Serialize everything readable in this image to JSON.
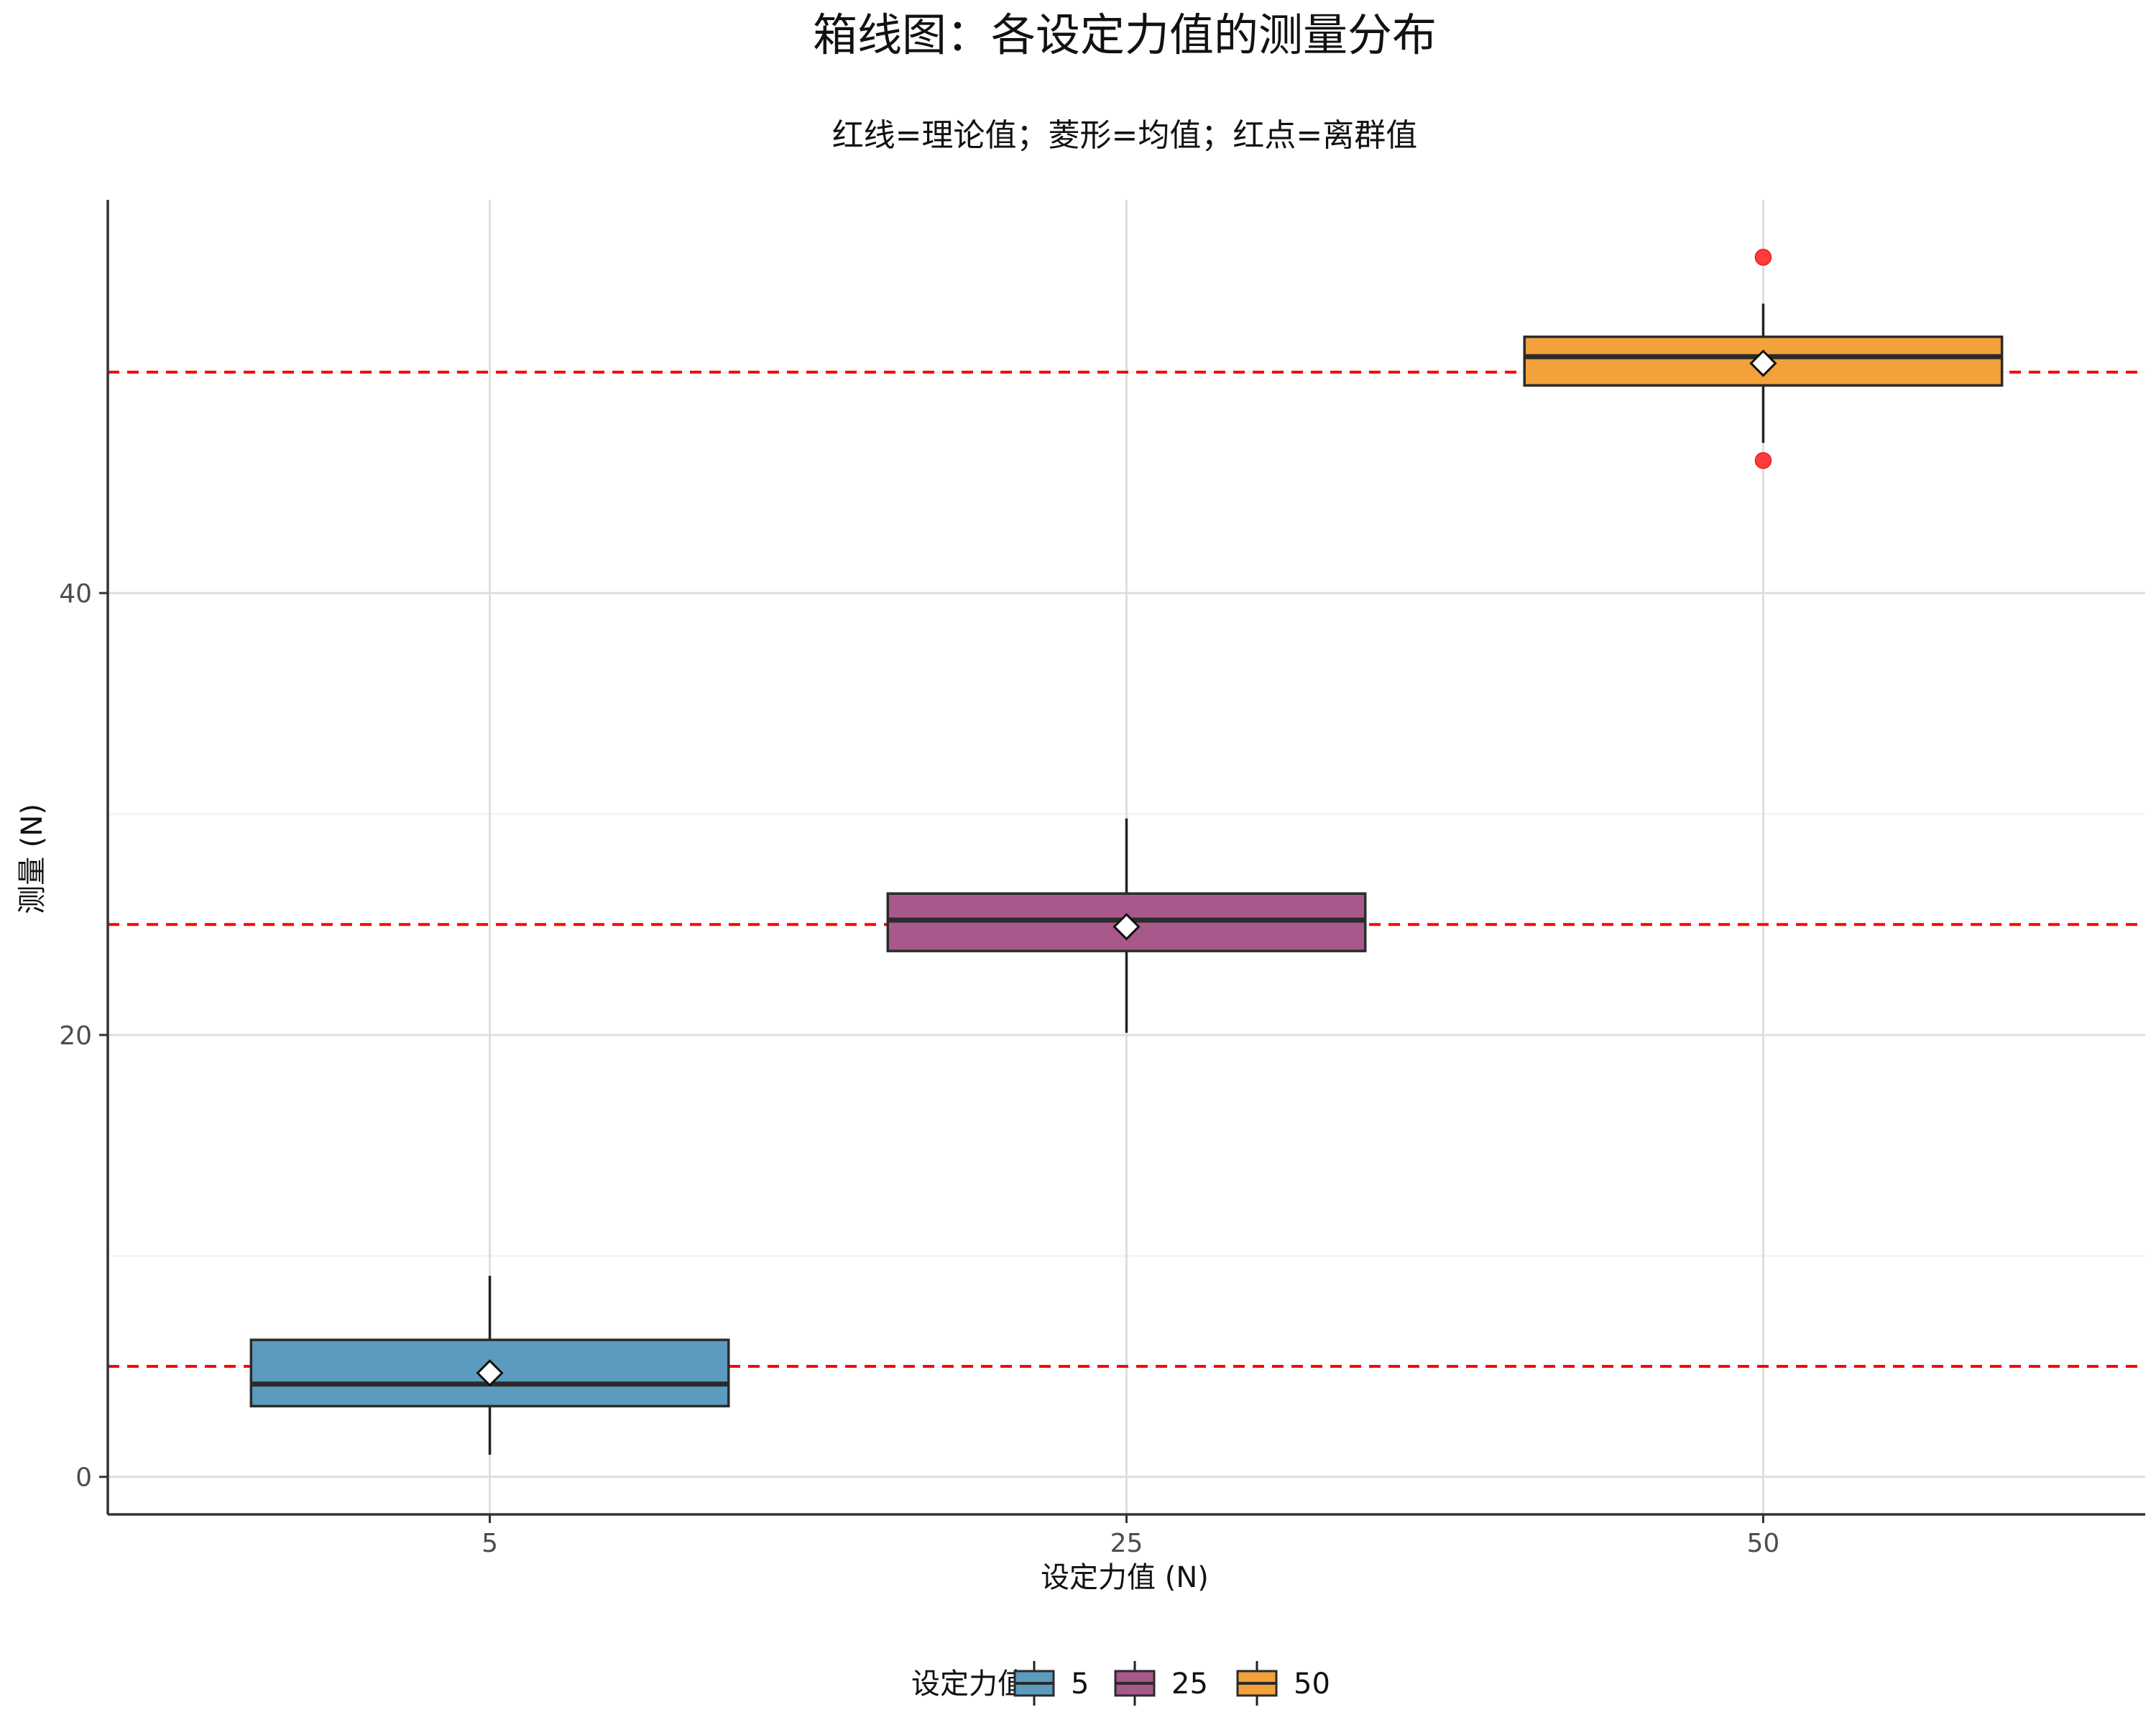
{
  "chart_data": {
    "type": "box",
    "title": "箱线图：各设定力值的测量分布",
    "subtitle": "红线=理论值；菱形=均值；红点=离群值",
    "xlabel": "设定力值 (N)",
    "ylabel": "测量 (N)",
    "categories": [
      "5",
      "25",
      "50"
    ],
    "ylim": [
      -1.7,
      57.8
    ],
    "y_ticks": [
      0,
      20,
      40
    ],
    "y_minor_ticks": [
      10,
      30,
      50
    ],
    "grid": true,
    "reference_lines": [
      5,
      25,
      50
    ],
    "boxes": [
      {
        "category": "5",
        "whisker_low": 1.0,
        "q1": 3.2,
        "median": 4.2,
        "q3": 6.2,
        "whisker_high": 9.1,
        "mean": 4.7,
        "outliers": []
      },
      {
        "category": "25",
        "whisker_low": 20.1,
        "q1": 23.8,
        "median": 25.2,
        "q3": 26.4,
        "whisker_high": 29.8,
        "mean": 24.9,
        "outliers": []
      },
      {
        "category": "50",
        "whisker_low": 46.8,
        "q1": 49.4,
        "median": 50.7,
        "q3": 51.6,
        "whisker_high": 53.1,
        "mean": 50.4,
        "outliers": [
          55.2,
          46.0
        ]
      }
    ],
    "colors": {
      "5": "#5b9bbd",
      "25": "#a8588b",
      "50": "#f3a13a",
      "reference": "#ff0000",
      "outlier": "#ff3b3b"
    },
    "legend": {
      "title": "设定力值",
      "position": "bottom",
      "entries": [
        "5",
        "25",
        "50"
      ]
    }
  }
}
